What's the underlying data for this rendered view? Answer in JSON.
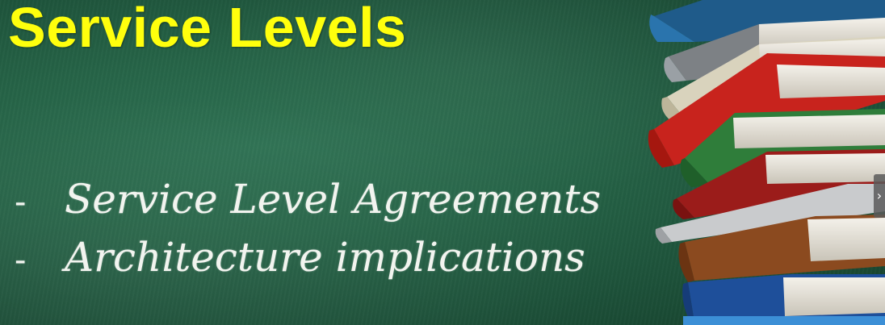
{
  "slide": {
    "title": "Service Levels",
    "bullets": [
      {
        "dash": "-",
        "text": "Service Level Agreements"
      },
      {
        "dash": "-",
        "text": "Architecture implications"
      }
    ]
  },
  "overlay": {
    "next_arrow_glyph": "›",
    "next_arrow_icon": "chevron-right-icon"
  },
  "colors": {
    "chalkboard": "#266447",
    "title": "#ffff0d",
    "chalk_text": "#f2f4ef"
  },
  "illustration": "books-stack"
}
